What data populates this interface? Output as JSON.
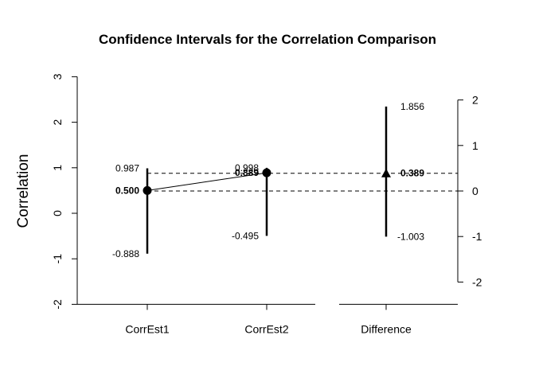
{
  "chart_data": {
    "type": "error-bar",
    "title": "Confidence Intervals for the Correlation Comparison",
    "ylabel": "Correlation",
    "categories": [
      "CorrEst1",
      "CorrEst2",
      "Difference"
    ],
    "left_axis": {
      "ylim": [
        -2,
        3
      ],
      "ticks": [
        "-2",
        "-1",
        "0",
        "1",
        "2",
        "3"
      ]
    },
    "right_axis": {
      "ylim": [
        -2,
        2
      ],
      "ticks": [
        "-2",
        "-1",
        "0",
        "1",
        "2"
      ]
    },
    "series": [
      {
        "name": "CorrEst1",
        "axis": "left",
        "marker": "circle",
        "estimate": 0.5,
        "lower": -0.888,
        "upper": 0.987,
        "labels": {
          "estimate": "0.500",
          "lower": "-0.888",
          "upper": "0.987"
        }
      },
      {
        "name": "CorrEst2",
        "axis": "left",
        "marker": "circle",
        "estimate": 0.889,
        "lower": -0.495,
        "upper": 0.998,
        "labels": {
          "estimate": "0.889",
          "lower": "-0.495",
          "upper": "0.998"
        }
      },
      {
        "name": "Difference",
        "axis": "right",
        "marker": "triangle",
        "estimate": 0.389,
        "lower": -1.003,
        "upper": 1.856,
        "labels": {
          "estimate": "0.389",
          "lower": "-1.003",
          "upper": "1.856"
        }
      }
    ],
    "reference_lines": [
      {
        "axis": "right",
        "value": 0,
        "style": "dashed"
      },
      {
        "axis": "right",
        "value": 0.389,
        "style": "dashed"
      }
    ],
    "grid": false
  }
}
